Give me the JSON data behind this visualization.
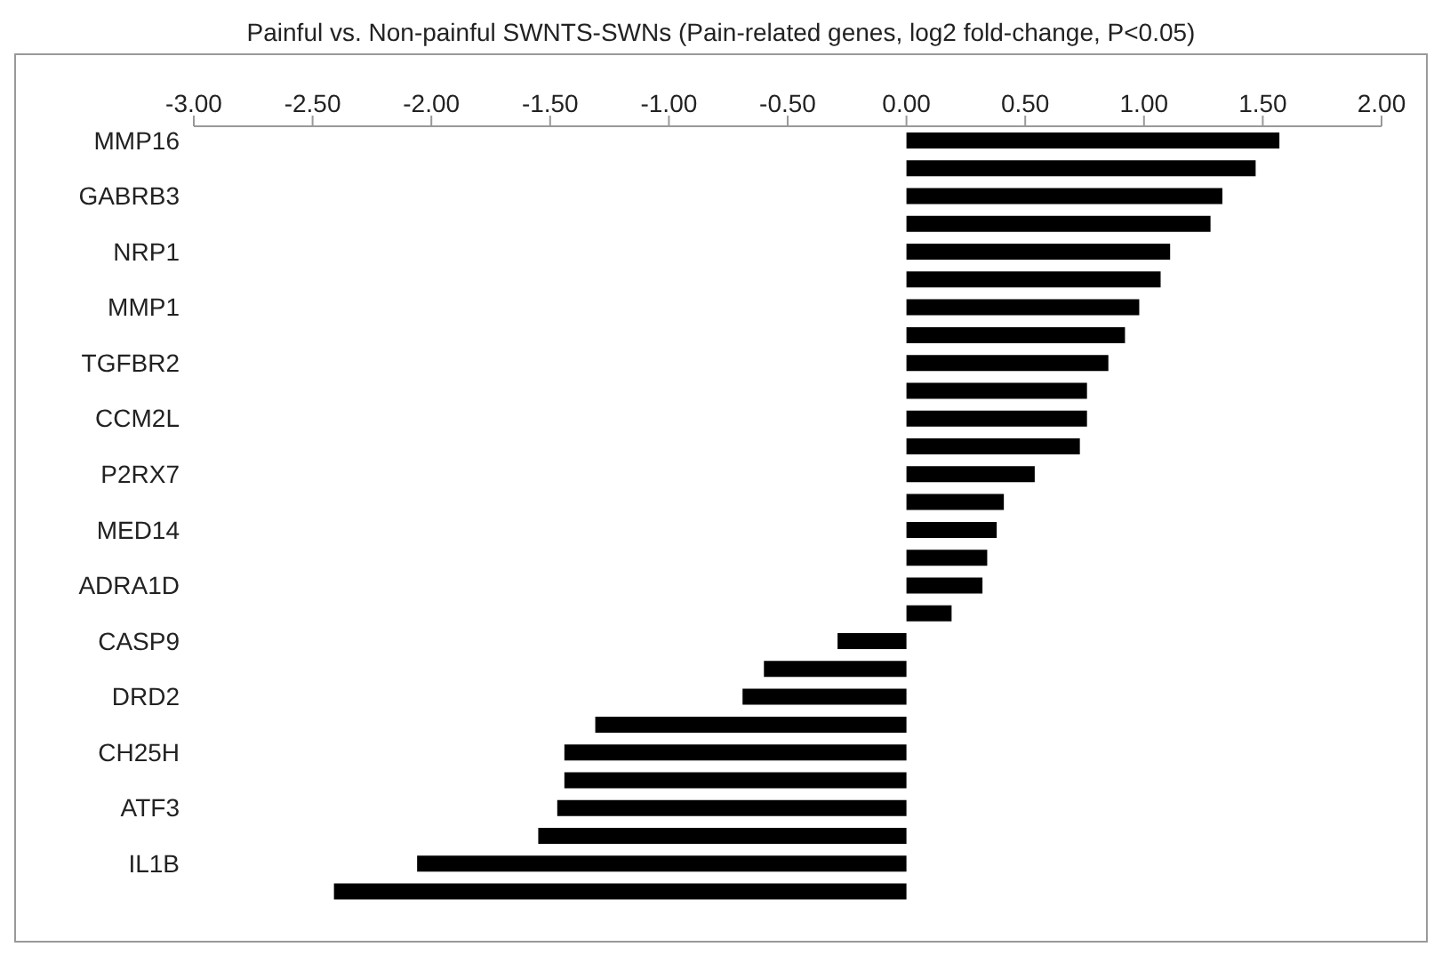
{
  "chart_data": {
    "type": "bar",
    "orientation": "horizontal",
    "title": "Painful vs. Non-painful SWNTS-SWNs (Pain-related genes, log2 fold-change, P<0.05)",
    "categories": [
      "MMP16",
      null,
      "GABRB3",
      null,
      "NRP1",
      null,
      "MMP1",
      null,
      "TGFBR2",
      null,
      "CCM2L",
      null,
      "P2RX7",
      null,
      "MED14",
      null,
      "ADRA1D",
      null,
      "CASP9",
      null,
      "DRD2",
      null,
      "CH25H",
      null,
      "ATF3",
      null,
      "IL1B",
      null
    ],
    "values": [
      1.57,
      1.47,
      1.33,
      1.28,
      1.11,
      1.07,
      0.98,
      0.92,
      0.85,
      0.76,
      0.76,
      0.73,
      0.54,
      0.41,
      0.38,
      0.34,
      0.32,
      0.19,
      -0.29,
      -0.6,
      -0.69,
      -1.31,
      -1.44,
      -1.44,
      -1.47,
      -1.55,
      -2.06,
      -2.41
    ],
    "color": "#000000",
    "xlim": [
      -3,
      2
    ],
    "xticks": [
      {
        "value": -3,
        "label": "-3.00"
      },
      {
        "value": -2.5,
        "label": "-2.50"
      },
      {
        "value": -2,
        "label": "-2.00"
      },
      {
        "value": -1.5,
        "label": "-1.50"
      },
      {
        "value": -1,
        "label": "-1.00"
      },
      {
        "value": -0.5,
        "label": "-0.50"
      },
      {
        "value": 0,
        "label": "0.00"
      },
      {
        "value": 0.5,
        "label": "0.50"
      },
      {
        "value": 1,
        "label": "1.00"
      },
      {
        "value": 1.5,
        "label": "1.50"
      },
      {
        "value": 2,
        "label": "2.00"
      }
    ],
    "grid": false,
    "legend": false
  }
}
